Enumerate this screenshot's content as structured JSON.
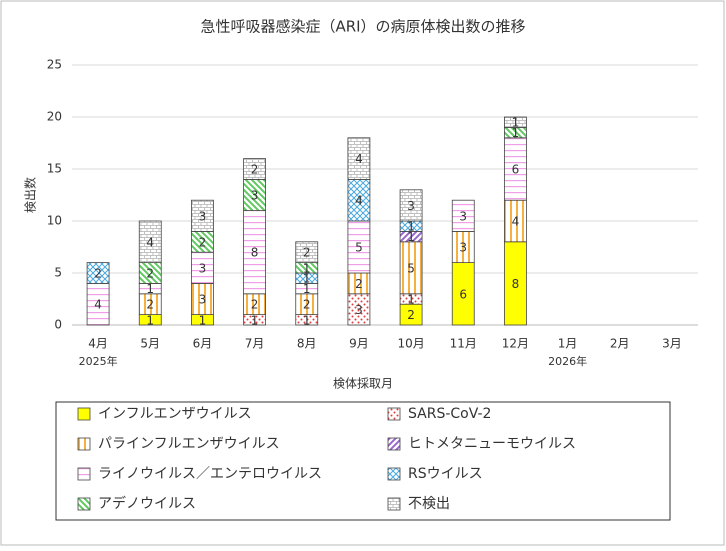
{
  "chart_data": {
    "type": "stacked-bar",
    "title": "急性呼吸器感染症（ARI）の病原体検出数の推移",
    "x_label": "検体採取月",
    "y_label": "検出数",
    "categories": [
      "4月",
      "5月",
      "6月",
      "7月",
      "8月",
      "9月",
      "10月",
      "11月",
      "12月",
      "1月",
      "2月",
      "3月"
    ],
    "category_years": [
      "2025年",
      null,
      null,
      null,
      null,
      null,
      null,
      null,
      null,
      "2026年",
      null,
      null
    ],
    "ylim": [
      0,
      25
    ],
    "yticks": [
      0,
      5,
      10,
      15,
      20,
      25
    ],
    "grid": true,
    "series": [
      {
        "name": "インフルエンザウイルス",
        "color": "#ffff00",
        "values": [
          null,
          1,
          1,
          null,
          null,
          null,
          2,
          6,
          8,
          null,
          null,
          null
        ]
      },
      {
        "name": "SARS-CoV-2",
        "color": "#e03c3c",
        "values": [
          null,
          null,
          null,
          1,
          1,
          3,
          1,
          null,
          null,
          null,
          null,
          null
        ]
      },
      {
        "name": "パラインフルエンザウイルス",
        "color": "#f5b040",
        "values": [
          null,
          2,
          3,
          2,
          2,
          2,
          5,
          3,
          4,
          null,
          null,
          null
        ]
      },
      {
        "name": "ヒトメタニューモウイルス",
        "color": "#9966cc",
        "values": [
          null,
          null,
          null,
          null,
          null,
          null,
          1,
          null,
          null,
          null,
          null,
          null
        ]
      },
      {
        "name": "ライノウイルス／エンテロウイルス",
        "color": "#f0a0e8",
        "values": [
          4,
          1,
          3,
          8,
          1,
          5,
          null,
          3,
          6,
          null,
          null,
          null
        ]
      },
      {
        "name": "RSウイルス",
        "color": "#4aa8e0",
        "values": [
          2,
          null,
          null,
          null,
          1,
          4,
          1,
          null,
          null,
          null,
          null,
          null
        ]
      },
      {
        "name": "アデノウイルス",
        "color": "#60c860",
        "values": [
          null,
          2,
          2,
          3,
          1,
          null,
          null,
          null,
          1,
          null,
          null,
          null
        ]
      },
      {
        "name": "不検出",
        "color": "#b0b0b0",
        "values": [
          null,
          4,
          3,
          2,
          2,
          4,
          3,
          null,
          1,
          null,
          null,
          null
        ]
      }
    ]
  }
}
